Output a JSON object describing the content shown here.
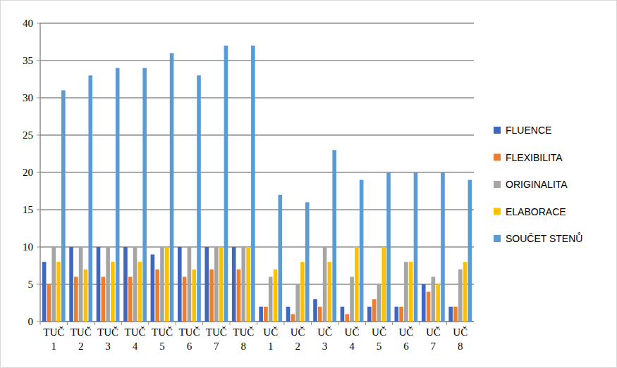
{
  "chart_data": {
    "type": "bar",
    "categories": [
      "TUČ 1",
      "TUČ 2",
      "TUČ 3",
      "TUČ 4",
      "TUČ 5",
      "TUČ 6",
      "TUČ 7",
      "TUČ 8",
      "UČ 1",
      "UČ 2",
      "UČ 3",
      "UČ 4",
      "UČ 5",
      "UČ 6",
      "UČ 7",
      "UČ 8"
    ],
    "series": [
      {
        "name": "FLUENCE",
        "color": "#3f67bd",
        "values": [
          8,
          10,
          10,
          10,
          9,
          10,
          10,
          10,
          2,
          2,
          3,
          2,
          2,
          2,
          5,
          2
        ]
      },
      {
        "name": "FLEXIBILITA",
        "color": "#ed7d31",
        "values": [
          5,
          6,
          6,
          6,
          7,
          6,
          7,
          7,
          2,
          1,
          2,
          1,
          3,
          2,
          4,
          2
        ]
      },
      {
        "name": "ORIGINALITA",
        "color": "#a5a5a5",
        "values": [
          10,
          10,
          10,
          10,
          10,
          10,
          10,
          10,
          6,
          5,
          10,
          6,
          5,
          8,
          6,
          7
        ]
      },
      {
        "name": "ELABORACE",
        "color": "#ffc000",
        "values": [
          8,
          7,
          8,
          8,
          10,
          7,
          10,
          10,
          7,
          8,
          8,
          10,
          10,
          8,
          5,
          8
        ]
      },
      {
        "name": "SOUČET STENŮ",
        "color": "#5b9bd5",
        "values": [
          31,
          33,
          34,
          34,
          36,
          33,
          37,
          37,
          17,
          16,
          23,
          19,
          20,
          20,
          20,
          19
        ]
      }
    ],
    "ylim": [
      0,
      40
    ],
    "yticks": [
      0,
      5,
      10,
      15,
      20,
      25,
      30,
      35,
      40
    ],
    "grid": true,
    "legend": "right"
  }
}
